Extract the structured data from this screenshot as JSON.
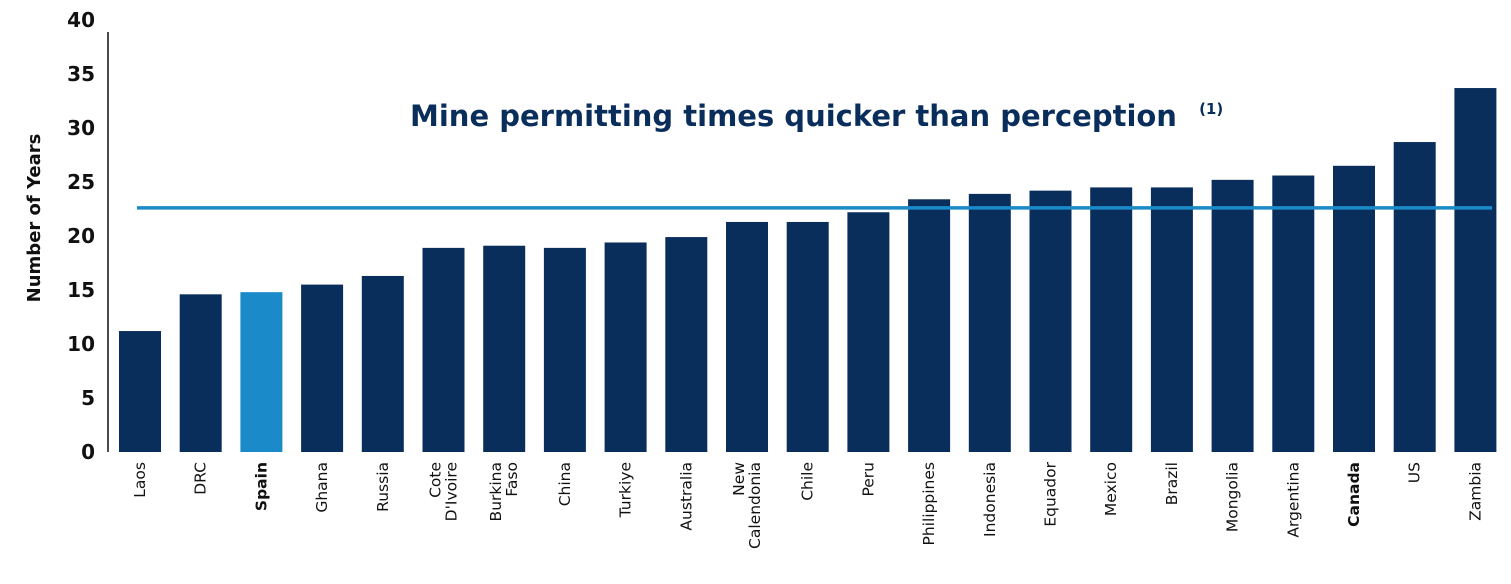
{
  "chart_data": {
    "type": "bar",
    "title": "Mine permitting times quicker than perception",
    "title_superscript": "(1)",
    "ylabel": "Number of Years",
    "xlabel": "",
    "ylim": [
      0,
      40
    ],
    "yticks": [
      0,
      5,
      10,
      15,
      20,
      25,
      30,
      35,
      40
    ],
    "grid": false,
    "legend": "none",
    "categories": [
      "Laos",
      "DRC",
      "Spain",
      "Ghana",
      "Russia",
      "Cote\nD'Ivoire",
      "Burkina\nFaso",
      "China",
      "Turkiye",
      "Australia",
      "New\nCalendonia",
      "Chile",
      "Peru",
      "Philippines",
      "Indonesia",
      "Equador",
      "Mexico",
      "Brazil",
      "Mongolia",
      "Argentina",
      "Canada",
      "US",
      "Zambia"
    ],
    "values": [
      11.2,
      14.6,
      14.8,
      15.5,
      16.3,
      18.9,
      19.1,
      18.9,
      19.4,
      19.9,
      21.3,
      21.3,
      22.2,
      23.4,
      23.9,
      24.2,
      24.5,
      24.5,
      25.2,
      25.6,
      26.5,
      28.7,
      33.7
    ],
    "bold_categories": [
      "Spain",
      "Canada"
    ],
    "highlight_category": "Spain",
    "reference_line": 22.6,
    "colors": {
      "bar": "#0a2e5c",
      "highlight": "#1a8ac8",
      "reference_line": "#1a8ac8",
      "title": "#0a2e5c",
      "axis": "#111111"
    }
  }
}
